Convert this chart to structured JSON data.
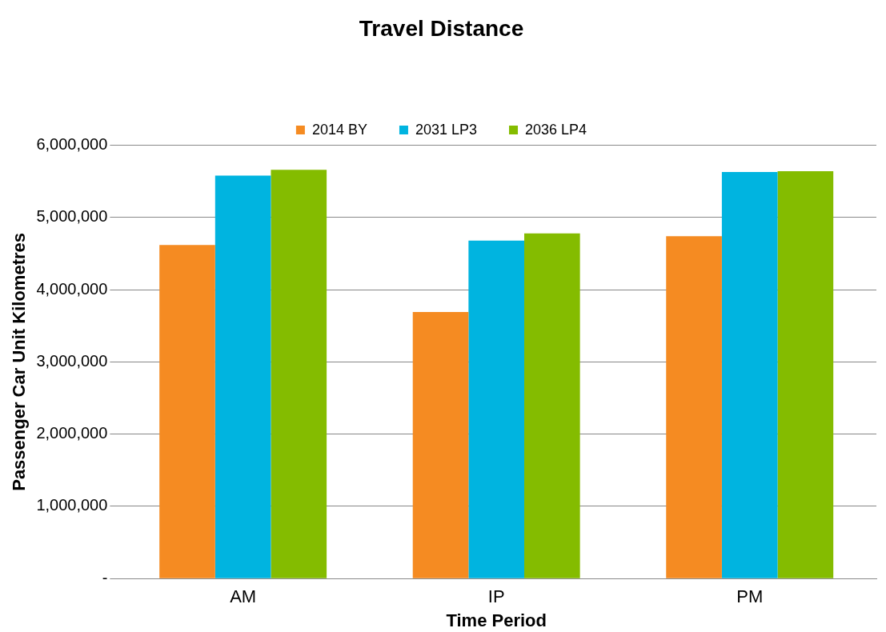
{
  "chart_data": {
    "type": "bar",
    "title": "Travel Distance",
    "xlabel": "Time Period",
    "ylabel": "Passenger Car Unit Kilometres",
    "categories": [
      "AM",
      "IP",
      "PM"
    ],
    "series": [
      {
        "name": "2014 BY",
        "color": "#f58b22",
        "values": [
          4620000,
          3690000,
          4740000
        ]
      },
      {
        "name": "2031 LP3",
        "color": "#00b4e0",
        "values": [
          5580000,
          4680000,
          5630000
        ]
      },
      {
        "name": "2036 LP4",
        "color": "#84bc00",
        "values": [
          5660000,
          4780000,
          5640000
        ]
      }
    ],
    "ylim": [
      0,
      6000000
    ],
    "yticks": [
      {
        "value": 0,
        "label": "-"
      },
      {
        "value": 1000000,
        "label": "1,000,000"
      },
      {
        "value": 2000000,
        "label": "2,000,000"
      },
      {
        "value": 3000000,
        "label": "3,000,000"
      },
      {
        "value": 4000000,
        "label": "4,000,000"
      },
      {
        "value": 5000000,
        "label": "5,000,000"
      },
      {
        "value": 6000000,
        "label": "6,000,000"
      }
    ],
    "grid": "y",
    "legend": "top"
  }
}
